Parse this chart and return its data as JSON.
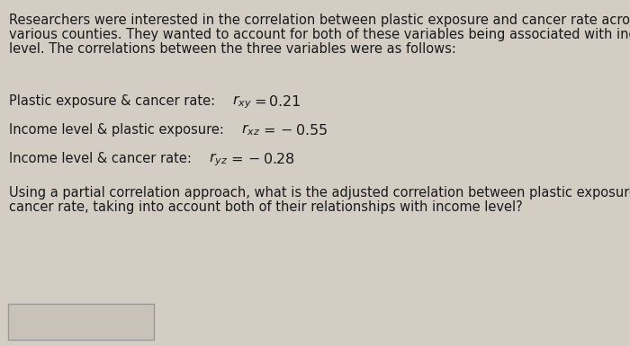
{
  "bg_color": "#d3cdc4",
  "text_color": "#1a1a1a",
  "paragraph1_lines": [
    "Researchers were interested in the correlation between plastic exposure and cancer rate across",
    "various counties. They wanted to account for both of these variables being associated with income",
    "level. The correlations between the three variables were as follows:"
  ],
  "paragraph2_lines": [
    "Using a partial correlation approach, what is the adjusted correlation between plastic exposure and",
    "cancer rate, taking into account both of their relationships with income level?"
  ],
  "font_size_body": 10.5,
  "box_color": "#c8c2b8"
}
